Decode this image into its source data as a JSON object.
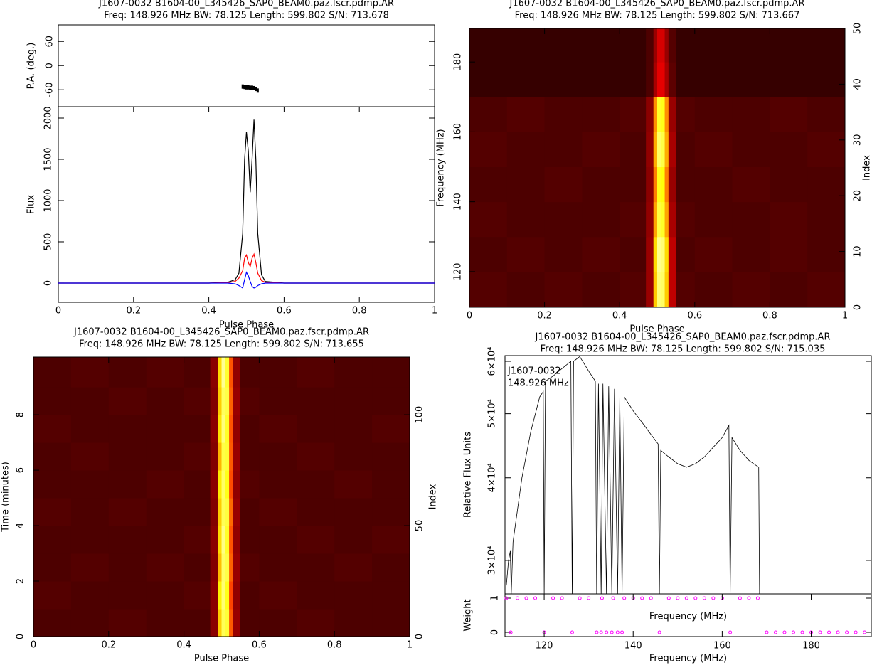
{
  "chart_data": [
    {
      "type": "profile",
      "title": "J1607-0032 B1604-00_L345426_SAP0_BEAM0.paz.fscr.pdmp.AR",
      "subtitle": "Freq: 148.926 MHz BW: 78.125 Length: 599.802 S/N: 713.678",
      "xlabel": "Pulse Phase",
      "xlim": [
        0,
        1
      ],
      "xticks": [
        0,
        0.2,
        0.4,
        0.6,
        0.8,
        1
      ],
      "pa": {
        "ylabel": "P.A. (deg.)",
        "ylim": [
          -102,
          101
        ],
        "yticks": [
          -60,
          0,
          60
        ],
        "x": [
          0.49,
          0.495,
          0.5,
          0.505,
          0.51,
          0.515,
          0.52,
          0.525,
          0.53
        ],
        "values": [
          -52,
          -53,
          -54,
          -54,
          -55,
          -55,
          -56,
          -58,
          -62
        ],
        "color": "#000000"
      },
      "ylabel": "Flux",
      "ylim": [
        -233,
        2138
      ],
      "yticks": [
        0,
        500,
        1000,
        1500,
        2000
      ],
      "x": [
        0,
        0.1,
        0.2,
        0.3,
        0.4,
        0.45,
        0.47,
        0.48,
        0.49,
        0.495,
        0.5,
        0.505,
        0.51,
        0.515,
        0.52,
        0.525,
        0.53,
        0.54,
        0.55,
        0.6,
        0.7,
        0.8,
        0.9,
        1
      ],
      "series": [
        {
          "color": "#000000",
          "values": [
            0,
            0,
            0,
            0,
            0,
            10,
            40,
            120,
            600,
            1500,
            1830,
            1600,
            1100,
            1500,
            1980,
            1500,
            600,
            100,
            20,
            0,
            0,
            0,
            0,
            0
          ]
        },
        {
          "color": "#ff0000",
          "values": [
            0,
            0,
            0,
            0,
            0,
            5,
            20,
            60,
            150,
            300,
            340,
            250,
            200,
            300,
            350,
            250,
            120,
            30,
            10,
            0,
            0,
            0,
            0,
            0
          ]
        },
        {
          "color": "#0000ff",
          "values": [
            0,
            0,
            0,
            0,
            0,
            0,
            -10,
            -30,
            -60,
            40,
            130,
            90,
            20,
            -40,
            -60,
            -50,
            -30,
            -10,
            0,
            0,
            0,
            0,
            0,
            0
          ]
        }
      ]
    },
    {
      "type": "heatmap",
      "title": "J1607-0032 B1604-00_L345426_SAP0_BEAM0.paz.fscr.pdmp.AR",
      "subtitle": "Freq: 148.926 MHz BW: 78.125 Length: 599.802 S/N: 713.667",
      "xlabel": "Pulse Phase",
      "ylabel": "Frequency (MHz)",
      "y2label": "Index",
      "xlim": [
        0,
        1
      ],
      "xticks": [
        0,
        0.2,
        0.4,
        0.6,
        0.8,
        1
      ],
      "ylim": [
        109.8,
        189.6
      ],
      "yticks": [
        120,
        140,
        160,
        180
      ],
      "y2lim": [
        0,
        50
      ],
      "y2ticks": [
        0,
        10,
        20,
        30,
        40,
        50
      ],
      "xbins": [
        0,
        0.1,
        0.2,
        0.3,
        0.4,
        0.47,
        0.49,
        0.5,
        0.51,
        0.52,
        0.53,
        0.55,
        0.6,
        0.7,
        0.8,
        0.9,
        1
      ],
      "ybins": [
        109.8,
        120,
        130,
        140,
        150,
        160,
        170,
        180,
        189.6
      ],
      "z": [
        [
          0.11,
          0.1,
          0.11,
          0.1,
          0.11,
          0.2,
          0.6,
          0.82,
          0.8,
          0.6,
          0.25,
          0.11,
          0.1,
          0.11,
          0.1,
          0.11
        ],
        [
          0.1,
          0.11,
          0.1,
          0.11,
          0.1,
          0.2,
          0.62,
          0.85,
          0.82,
          0.62,
          0.25,
          0.1,
          0.11,
          0.1,
          0.11,
          0.1
        ],
        [
          0.11,
          0.1,
          0.1,
          0.1,
          0.11,
          0.19,
          0.55,
          0.75,
          0.72,
          0.55,
          0.22,
          0.11,
          0.1,
          0.1,
          0.11,
          0.1
        ],
        [
          0.1,
          0.1,
          0.11,
          0.1,
          0.1,
          0.18,
          0.5,
          0.7,
          0.68,
          0.5,
          0.2,
          0.1,
          0.1,
          0.11,
          0.1,
          0.1
        ],
        [
          0.11,
          0.1,
          0.1,
          0.11,
          0.1,
          0.19,
          0.56,
          0.8,
          0.76,
          0.56,
          0.22,
          0.1,
          0.11,
          0.1,
          0.1,
          0.11
        ],
        [
          0.1,
          0.11,
          0.1,
          0.1,
          0.11,
          0.18,
          0.52,
          0.72,
          0.7,
          0.52,
          0.2,
          0.11,
          0.1,
          0.1,
          0.11,
          0.1
        ],
        [
          0.07,
          0.07,
          0.07,
          0.07,
          0.07,
          0.1,
          0.22,
          0.3,
          0.3,
          0.22,
          0.12,
          0.07,
          0.07,
          0.07,
          0.07,
          0.07
        ],
        [
          0.07,
          0.07,
          0.07,
          0.07,
          0.07,
          0.1,
          0.2,
          0.28,
          0.28,
          0.2,
          0.11,
          0.07,
          0.07,
          0.07,
          0.07,
          0.07
        ]
      ]
    },
    {
      "type": "heatmap",
      "title": "J1607-0032 B1604-00_L345426_SAP0_BEAM0.paz.fscr.pdmp.AR",
      "subtitle": "Freq: 148.926 MHz BW: 78.125 Length: 599.802 S/N: 713.655",
      "xlabel": "Pulse Phase",
      "ylabel": "Time (minutes)",
      "y2label": "Index",
      "xlim": [
        0,
        1
      ],
      "xticks": [
        0,
        0.2,
        0.4,
        0.6,
        0.8,
        1
      ],
      "ylim": [
        0,
        10.08
      ],
      "yticks": [
        0,
        2,
        4,
        6,
        8
      ],
      "y2lim": [
        0,
        126
      ],
      "y2ticks": [
        0,
        50,
        100
      ],
      "xbins": [
        0,
        0.1,
        0.2,
        0.3,
        0.4,
        0.47,
        0.49,
        0.5,
        0.51,
        0.52,
        0.53,
        0.55,
        0.6,
        0.7,
        0.8,
        0.9,
        1
      ],
      "ybins": [
        0,
        1,
        2,
        3,
        4,
        5,
        6,
        7,
        8,
        9,
        10.08
      ],
      "z": [
        [
          0.1,
          0.1,
          0.11,
          0.1,
          0.1,
          0.18,
          0.6,
          0.78,
          0.74,
          0.45,
          0.2,
          0.1,
          0.1,
          0.11,
          0.1,
          0.1
        ],
        [
          0.11,
          0.1,
          0.1,
          0.1,
          0.11,
          0.18,
          0.65,
          0.82,
          0.7,
          0.42,
          0.19,
          0.1,
          0.11,
          0.1,
          0.1,
          0.1
        ],
        [
          0.1,
          0.11,
          0.1,
          0.11,
          0.1,
          0.17,
          0.58,
          0.8,
          0.76,
          0.46,
          0.2,
          0.11,
          0.1,
          0.1,
          0.11,
          0.1
        ],
        [
          0.1,
          0.1,
          0.1,
          0.1,
          0.11,
          0.18,
          0.62,
          0.84,
          0.72,
          0.44,
          0.19,
          0.1,
          0.1,
          0.11,
          0.1,
          0.11
        ],
        [
          0.11,
          0.1,
          0.11,
          0.1,
          0.1,
          0.17,
          0.6,
          0.78,
          0.75,
          0.47,
          0.2,
          0.1,
          0.11,
          0.1,
          0.1,
          0.1
        ],
        [
          0.1,
          0.1,
          0.1,
          0.11,
          0.1,
          0.18,
          0.64,
          0.8,
          0.7,
          0.43,
          0.19,
          0.11,
          0.1,
          0.1,
          0.11,
          0.1
        ],
        [
          0.1,
          0.11,
          0.1,
          0.1,
          0.11,
          0.17,
          0.57,
          0.76,
          0.74,
          0.45,
          0.2,
          0.1,
          0.1,
          0.11,
          0.1,
          0.1
        ],
        [
          0.11,
          0.1,
          0.1,
          0.1,
          0.1,
          0.18,
          0.63,
          0.83,
          0.72,
          0.44,
          0.19,
          0.1,
          0.11,
          0.1,
          0.1,
          0.11
        ],
        [
          0.1,
          0.1,
          0.11,
          0.1,
          0.11,
          0.17,
          0.6,
          0.79,
          0.76,
          0.46,
          0.2,
          0.11,
          0.1,
          0.1,
          0.1,
          0.1
        ],
        [
          0.1,
          0.11,
          0.1,
          0.11,
          0.1,
          0.18,
          0.62,
          0.86,
          0.73,
          0.44,
          0.19,
          0.1,
          0.1,
          0.11,
          0.1,
          0.1
        ]
      ]
    },
    {
      "type": "spectrum",
      "title": "J1607-0032 B1604-00_L345426_SAP0_BEAM0.paz.fscr.pdmp.AR",
      "subtitle": "Freq: 148.926 MHz BW: 78.125 Length: 599.802 S/N: 715.035",
      "annotations": [
        "J1607-0032",
        "148.926 MHz"
      ],
      "xlabel": "Frequency (MHz)",
      "ylabel": "Relative Flux Units",
      "xlim": [
        111.2,
        193.5
      ],
      "xticks": [
        120,
        140,
        160,
        180
      ],
      "log": true,
      "ylim": [
        26700,
        61200
      ],
      "yticks": [
        {
          "value": 30000,
          "label": "3×10⁴"
        },
        {
          "value": 40000,
          "label": "4×10⁴"
        },
        {
          "value": 50000,
          "label": "5×10⁴"
        },
        {
          "value": 60000,
          "label": "6×10⁴"
        }
      ],
      "color": "#000000",
      "x": [
        111.5,
        112,
        112.4,
        112.6,
        113,
        115,
        117,
        119,
        119.8,
        120,
        120.3,
        122,
        124,
        126,
        126.3,
        126.6,
        128,
        130,
        131.5,
        131.8,
        132.2,
        132.8,
        133.2,
        134,
        134.5,
        135.2,
        135.8,
        136.5,
        137,
        137.5,
        138,
        140,
        142,
        144,
        145.6,
        145.9,
        146.2,
        148,
        150,
        152,
        154,
        156,
        158,
        160,
        161.5,
        161.8,
        162.2,
        164,
        166,
        168.2,
        168.4
      ],
      "values": [
        27500,
        30000,
        31000,
        26700,
        32000,
        40000,
        47000,
        53000,
        54000,
        26700,
        56000,
        57000,
        58500,
        60000,
        26700,
        60000,
        61000,
        58000,
        56000,
        26700,
        55500,
        26700,
        55500,
        26700,
        55000,
        26700,
        54500,
        26700,
        53000,
        26700,
        53000,
        50500,
        48500,
        46500,
        45000,
        26700,
        44000,
        43000,
        42000,
        41500,
        42000,
        43000,
        44500,
        46000,
        48000,
        26700,
        46000,
        44000,
        42500,
        41500,
        26700
      ],
      "weight": {
        "ylabel": "Weight",
        "ylim": [
          -0.125,
          1.125
        ],
        "yticks": [
          0,
          1
        ],
        "color": "#ff00ff",
        "x": [
          111.5,
          114,
          116,
          118,
          122,
          124,
          128,
          130,
          133,
          135.5,
          138,
          140,
          142,
          144,
          148,
          150,
          152,
          154,
          156,
          158,
          160,
          164,
          166,
          168,
          112.5,
          120,
          126.3,
          131.8,
          132.8,
          134,
          135.2,
          136.5,
          137.5,
          145.9,
          161.8,
          170,
          172,
          174,
          176,
          178,
          180,
          182,
          184,
          186,
          188,
          190,
          192
        ],
        "values": [
          1,
          1,
          1,
          1,
          1,
          1,
          1,
          1,
          1,
          1,
          1,
          1,
          1,
          1,
          1,
          1,
          1,
          1,
          1,
          1,
          1,
          1,
          1,
          1,
          0,
          0,
          0,
          0,
          0,
          0,
          0,
          0,
          0,
          0,
          0,
          0,
          0,
          0,
          0,
          0,
          0,
          0,
          0,
          0,
          0,
          0,
          0
        ]
      }
    }
  ]
}
